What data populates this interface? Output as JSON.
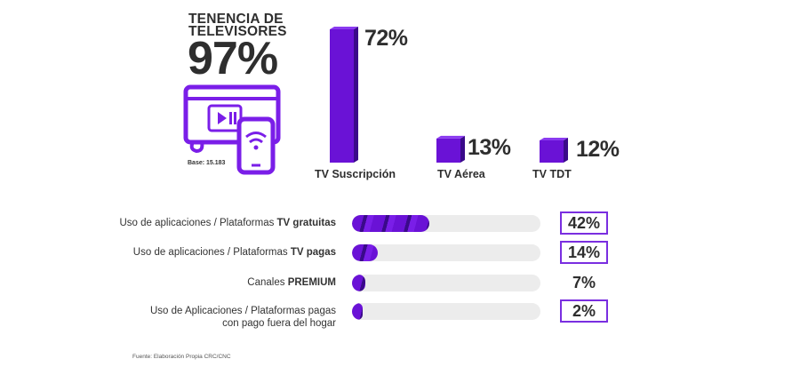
{
  "headline": {
    "title_line1": "TENENCIA DE",
    "title_line2": "TELEVISORES",
    "value": "97%",
    "base_note": "Base: 15.183"
  },
  "icons": {
    "tv": "tv-icon",
    "play": "play-pause-icon",
    "phone": "smartphone-wifi-icon"
  },
  "colors": {
    "accent": "#6a12d6",
    "accent_dark": "#3a0a8a",
    "track": "#ececec",
    "box_border": "#7a2ee0"
  },
  "chart_data": [
    {
      "type": "bar",
      "categories": [
        "TV Suscripción",
        "TV Aérea",
        "TV TDT"
      ],
      "values": [
        72,
        13,
        12
      ],
      "value_labels": [
        "72%",
        "13%",
        "12%"
      ],
      "ylim": [
        0,
        72
      ]
    },
    {
      "type": "bar",
      "orientation": "horizontal",
      "categories": [
        {
          "prefix": "Uso de aplicaciones / Plataformas ",
          "strong": "TV gratuitas",
          "line2": ""
        },
        {
          "prefix": "Uso de aplicaciones / Plataformas ",
          "strong": "TV pagas",
          "line2": ""
        },
        {
          "prefix": "Canales ",
          "strong": "PREMIUM",
          "line2": ""
        },
        {
          "prefix": "Uso de Aplicaciones / Plataformas pagas",
          "strong": "",
          "line2": "con pago fuera del hogar"
        }
      ],
      "values": [
        42,
        14,
        7,
        2
      ],
      "value_labels": [
        "42%",
        "14%",
        "7%",
        "2%"
      ],
      "boxed": [
        true,
        true,
        false,
        true
      ],
      "xlim": [
        0,
        100
      ]
    }
  ],
  "source": "Fuente: Elaboración Propia CRC/CNC"
}
